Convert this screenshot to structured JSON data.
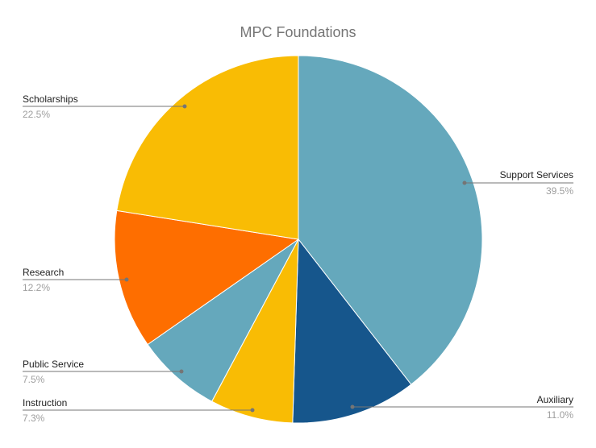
{
  "chart_data": {
    "type": "pie",
    "title": "MPC Foundations",
    "start_angle_deg": 0,
    "direction": "clockwise",
    "slices": [
      {
        "label": "Support Services",
        "percent": 39.5,
        "color": "#65a8bc"
      },
      {
        "label": "Auxiliary",
        "percent": 11.0,
        "color": "#16568c"
      },
      {
        "label": "Instruction",
        "percent": 7.3,
        "color": "#f9bc04"
      },
      {
        "label": "Public Service",
        "percent": 7.5,
        "color": "#65a8bc"
      },
      {
        "label": "Research",
        "percent": 12.2,
        "color": "#fe6e00"
      },
      {
        "label": "Scholarships",
        "percent": 22.5,
        "color": "#f9bc04"
      }
    ],
    "legend_position": "labeled (leader lines)"
  },
  "labels": {
    "support": {
      "name": "Support Services",
      "pct": "39.5%"
    },
    "auxiliary": {
      "name": "Auxiliary",
      "pct": "11.0%"
    },
    "instruction": {
      "name": "Instruction",
      "pct": "7.3%"
    },
    "public": {
      "name": "Public Service",
      "pct": "7.5%"
    },
    "research": {
      "name": "Research",
      "pct": "12.2%"
    },
    "scholarships": {
      "name": "Scholarships",
      "pct": "22.5%"
    }
  }
}
